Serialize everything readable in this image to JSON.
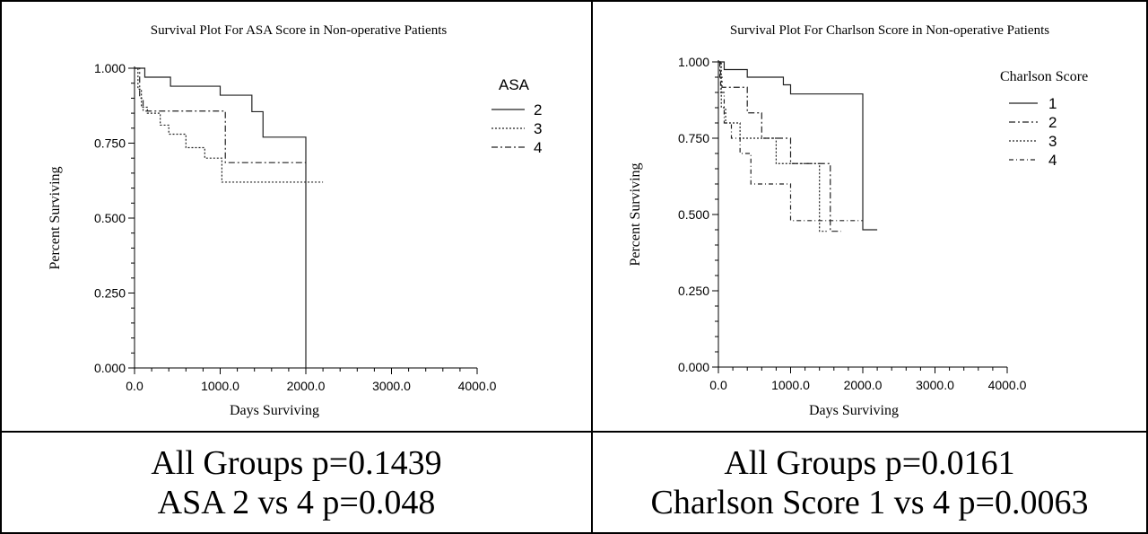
{
  "chart_data": [
    {
      "type": "line",
      "title": "Survival Plot For ASA Score in Non-operative Patients",
      "xlabel": "Days Surviving",
      "ylabel": "Percent Surviving",
      "xlim": [
        0,
        4000
      ],
      "ylim": [
        0,
        1
      ],
      "x_ticks": [
        "0.0",
        "1000.0",
        "2000.0",
        "3000.0",
        "4000.0"
      ],
      "y_ticks": [
        "0.000",
        "0.250",
        "0.500",
        "0.750",
        "1.000"
      ],
      "legend_title": "ASA",
      "legend_position": "top-right",
      "series": [
        {
          "name": "2",
          "style": "solid",
          "x": [
            0,
            120,
            420,
            1000,
            1370,
            1500,
            2000,
            2000
          ],
          "y": [
            1.0,
            0.97,
            0.94,
            0.91,
            0.855,
            0.77,
            0.77,
            0.0
          ]
        },
        {
          "name": "3",
          "style": "dotted",
          "x": [
            0,
            40,
            80,
            150,
            300,
            400,
            600,
            820,
            1020,
            2200
          ],
          "y": [
            1.0,
            0.93,
            0.87,
            0.85,
            0.81,
            0.78,
            0.735,
            0.7,
            0.62,
            0.62
          ]
        },
        {
          "name": "4",
          "style": "dashdot",
          "x": [
            0,
            60,
            100,
            1060,
            2000
          ],
          "y": [
            1.0,
            0.9,
            0.857,
            0.685,
            0.685
          ]
        }
      ]
    },
    {
      "type": "line",
      "title": "Survival Plot For Charlson Score in Non-operative Patients",
      "xlabel": "Days Surviving",
      "ylabel": "Percent Surviving",
      "xlim": [
        0,
        4000
      ],
      "ylim": [
        0,
        1
      ],
      "x_ticks": [
        "0.0",
        "1000.0",
        "2000.0",
        "3000.0",
        "4000.0"
      ],
      "y_ticks": [
        "0.000",
        "0.250",
        "0.500",
        "0.750",
        "1.000"
      ],
      "legend_title": "Charlson Score",
      "legend_position": "top-right",
      "series": [
        {
          "name": "1",
          "style": "solid",
          "x": [
            0,
            80,
            400,
            900,
            1000,
            2000,
            2200
          ],
          "y": [
            1.0,
            0.975,
            0.95,
            0.925,
            0.895,
            0.45,
            0.45
          ]
        },
        {
          "name": "2",
          "style": "dashdot",
          "x": [
            0,
            20,
            50,
            400,
            600,
            1000,
            1450,
            1550,
            1700
          ],
          "y": [
            1.0,
            0.95,
            0.917,
            0.833,
            0.75,
            0.667,
            0.667,
            0.445,
            0.445
          ]
        },
        {
          "name": "3",
          "style": "dotted",
          "x": [
            0,
            40,
            100,
            300,
            800,
            1400,
            1500
          ],
          "y": [
            1.0,
            0.85,
            0.8,
            0.75,
            0.667,
            0.445,
            0.445
          ]
        },
        {
          "name": "4",
          "style": "dashdot2",
          "x": [
            0,
            30,
            80,
            180,
            300,
            450,
            1000,
            1300,
            2000
          ],
          "y": [
            1.0,
            0.9,
            0.8,
            0.75,
            0.7,
            0.6,
            0.48,
            0.48,
            0.48
          ]
        }
      ]
    }
  ],
  "captions": {
    "left": {
      "line1": "All Groups p=0.1439",
      "line2": "ASA 2 vs 4 p=0.048"
    },
    "right": {
      "line1": "All Groups p=0.0161",
      "line2": "Charlson Score 1 vs 4 p=0.0063"
    }
  }
}
